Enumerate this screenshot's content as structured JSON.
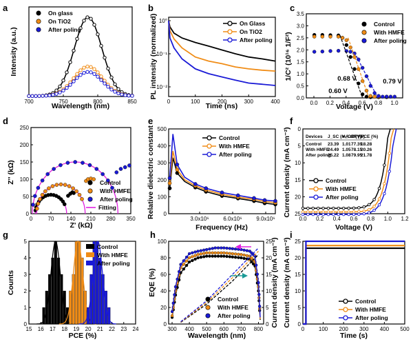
{
  "colors": {
    "control": "#000000",
    "hmfe": "#f08c16",
    "poling": "#1a1ad6",
    "fitting": "#e020e0",
    "teal": "#1a9a96"
  },
  "chart_data": [
    {
      "panel": "a",
      "type": "line",
      "xlabel": "Wavelength (nm)",
      "ylabel": "Intensity (a.u.)",
      "xlim": [
        700,
        850
      ],
      "xticks": [
        "700",
        "750",
        "800",
        "850"
      ],
      "series": [
        {
          "name": "On glass",
          "peak_x": 786,
          "peak_y": 0.88,
          "sigma": 20
        },
        {
          "name": "On TiO2",
          "peak_x": 786,
          "peak_y": 0.33,
          "sigma": 21
        },
        {
          "name": "After poling",
          "peak_x": 786,
          "peak_y": 0.27,
          "sigma": 21
        }
      ]
    },
    {
      "panel": "b",
      "type": "line",
      "xlabel": "Time (ns)",
      "ylabel": "PL intensity (normalized)",
      "xlim": [
        0,
        400
      ],
      "xticks": [
        "0",
        "100",
        "200",
        "300",
        "400"
      ],
      "yticks": [
        "10°",
        "10⁻¹",
        "10⁻²"
      ],
      "yscale": "log",
      "series": [
        {
          "name": "On Glass",
          "x": [
            0,
            5,
            20,
            50,
            100,
            150,
            200,
            250,
            300,
            350,
            400
          ],
          "y": [
            1.0,
            0.65,
            0.42,
            0.3,
            0.22,
            0.17,
            0.13,
            0.1,
            0.08,
            0.07,
            0.06
          ]
        },
        {
          "name": "On TiO2",
          "x": [
            0,
            5,
            20,
            50,
            100,
            150,
            200,
            250,
            300,
            350,
            400
          ],
          "y": [
            1.0,
            0.5,
            0.28,
            0.15,
            0.08,
            0.06,
            0.05,
            0.04,
            0.035,
            0.032,
            0.03
          ]
        },
        {
          "name": "After poling",
          "x": [
            0,
            5,
            20,
            50,
            100,
            150,
            200,
            250,
            300,
            350,
            400
          ],
          "y": [
            1.0,
            0.3,
            0.15,
            0.07,
            0.035,
            0.025,
            0.02,
            0.016,
            0.013,
            0.012,
            0.011
          ]
        }
      ]
    },
    {
      "panel": "c",
      "type": "scatter",
      "xlabel": "Voltage (V)",
      "ylabel": "1/C² (10¹⁶ 1/F²)",
      "xlim": [
        -0.1,
        1.1
      ],
      "ylim": [
        0,
        3.5
      ],
      "xticks": [
        "0.0",
        "0.2",
        "0.4",
        "0.6",
        "0.8",
        "1.0"
      ],
      "yticks": [
        "0.0",
        "0.5",
        "1.0",
        "1.5",
        "2.0",
        "2.5",
        "3.0",
        "3.5"
      ],
      "annotations": [
        "0.60 V",
        "0.68 V",
        "0.79 V"
      ],
      "series": [
        {
          "name": "Control",
          "x": [
            0.0,
            0.1,
            0.2,
            0.3,
            0.35,
            0.4,
            0.45,
            0.5,
            0.55,
            0.6,
            0.65,
            0.7,
            0.8,
            0.9
          ],
          "y": [
            2.62,
            2.62,
            2.61,
            2.6,
            2.5,
            2.2,
            1.7,
            1.2,
            0.6,
            0.15,
            0.05,
            0.03,
            0.03,
            0.03
          ]
        },
        {
          "name": "With HMFE",
          "x": [
            0.0,
            0.1,
            0.2,
            0.3,
            0.35,
            0.4,
            0.45,
            0.5,
            0.55,
            0.6,
            0.65,
            0.7,
            0.75,
            0.8,
            0.9
          ],
          "y": [
            2.55,
            2.55,
            2.55,
            2.55,
            2.5,
            2.4,
            2.1,
            1.7,
            1.2,
            0.7,
            0.3,
            0.08,
            0.05,
            0.05,
            0.05
          ]
        },
        {
          "name": "After poling",
          "x": [
            0.0,
            0.1,
            0.2,
            0.3,
            0.4,
            0.45,
            0.5,
            0.55,
            0.6,
            0.65,
            0.7,
            0.75,
            0.8,
            0.85,
            0.9,
            0.95,
            1.0
          ],
          "y": [
            1.92,
            1.93,
            1.95,
            1.96,
            1.95,
            1.92,
            1.85,
            1.6,
            1.25,
            0.9,
            0.5,
            0.2,
            0.08,
            0.05,
            0.05,
            0.05,
            0.05
          ]
        }
      ]
    },
    {
      "panel": "d",
      "type": "scatter",
      "xlabel": "Z' (kΩ)",
      "ylabel": "Z'' (kΩ)",
      "xlim": [
        0,
        350
      ],
      "ylim": [
        0,
        250
      ],
      "xticks": [
        "0",
        "70",
        "140",
        "210",
        "280",
        "350"
      ],
      "yticks": [
        "0",
        "50",
        "100",
        "150",
        "200",
        "250"
      ],
      "series": [
        {
          "name": "Control",
          "kind": "arc",
          "center": 70,
          "radius": 55,
          "tail": [
            [
              130,
              52
            ],
            [
              138,
              58
            ],
            [
              145,
              62
            ],
            [
              150,
              60
            ]
          ]
        },
        {
          "name": "With HMFE",
          "kind": "arc",
          "center": 105,
          "radius": 85,
          "tail": [
            [
              193,
              95
            ],
            [
              200,
              100
            ],
            [
              210,
              102
            ],
            [
              220,
              100
            ]
          ]
        },
        {
          "name": "After poling",
          "kind": "arc",
          "center": 155,
          "radius": 150,
          "tail": [
            [
              300,
              120
            ],
            [
              315,
              130
            ],
            [
              330,
              135
            ],
            [
              345,
              140
            ]
          ]
        },
        {
          "name": "Fitting",
          "kind": "line"
        }
      ]
    },
    {
      "panel": "e",
      "type": "line",
      "xlabel": "Frequency (Hz)",
      "ylabel": "Relative dielectric constant",
      "ylim": [
        0,
        500
      ],
      "xticks": [
        "3.0x10⁶",
        "6.0x10⁶",
        "9.0x10⁶"
      ],
      "yticks": [
        "0",
        "100",
        "200",
        "300",
        "400",
        "500"
      ],
      "series": [
        {
          "name": "Control",
          "x": [
            0.1,
            0.4,
            0.8,
            1.5,
            2.5,
            3.5,
            5,
            6.5,
            8,
            9,
            10
          ],
          "y": [
            150,
            330,
            240,
            190,
            155,
            130,
            105,
            90,
            75,
            62,
            55
          ]
        },
        {
          "name": "With HMFE",
          "x": [
            0.1,
            0.4,
            0.8,
            1.5,
            2.5,
            3.5,
            5,
            6.5,
            8,
            9,
            10
          ],
          "y": [
            180,
            370,
            260,
            200,
            165,
            140,
            115,
            98,
            85,
            72,
            65
          ]
        },
        {
          "name": "After poling",
          "x": [
            0.1,
            0.4,
            0.8,
            1.5,
            2.5,
            3.5,
            5,
            6.5,
            8,
            9,
            10
          ],
          "y": [
            210,
            470,
            290,
            215,
            175,
            150,
            125,
            108,
            92,
            80,
            75
          ]
        }
      ]
    },
    {
      "panel": "f",
      "type": "line",
      "xlabel": "Voltage (V)",
      "ylabel": "Current density (mA cm⁻²)",
      "xlim": [
        0,
        1.2
      ],
      "ylim": [
        0,
        25
      ],
      "xticks": [
        "0.0",
        "0.2",
        "0.4",
        "0.6",
        "0.8",
        "1.0",
        "1.2"
      ],
      "yticks": [
        "0",
        "5",
        "10",
        "15",
        "20",
        "25"
      ],
      "table": {
        "headers": [
          "Devices",
          "J_SC (mA cm⁻²)",
          "V_OC (V)",
          "FF (%)",
          "PCE (%)"
        ],
        "rows": [
          [
            "Control",
            "23.39",
            "1.01",
            "77.39",
            "18.28"
          ],
          [
            "With HMFE",
            "24.49",
            "1.05",
            "78.15",
            "20.26"
          ],
          [
            "After poling",
            "25.22",
            "1.08",
            "79.95",
            "21.78"
          ]
        ]
      },
      "series": [
        {
          "name": "Control",
          "jsc": 23.39,
          "voc": 1.01
        },
        {
          "name": "With HMFE",
          "jsc": 24.49,
          "voc": 1.05
        },
        {
          "name": "After poling",
          "jsc": 25.22,
          "voc": 1.08
        }
      ]
    },
    {
      "panel": "g",
      "type": "bar",
      "xlabel": "PCE (%)",
      "ylabel": "Counts",
      "xlim": [
        15,
        24
      ],
      "ylim": [
        0,
        5
      ],
      "xticks": [
        "15",
        "16",
        "17",
        "18",
        "19",
        "20",
        "21",
        "22",
        "23",
        "24"
      ],
      "yticks": [
        "0",
        "1",
        "2",
        "3",
        "4",
        "5"
      ],
      "series": [
        {
          "name": "Control",
          "x": [
            16.25,
            16.5,
            16.75,
            17.0,
            17.25,
            17.5,
            17.75,
            18.0,
            18.25
          ],
          "y": [
            1,
            2,
            3,
            4,
            5,
            4,
            3,
            2,
            1
          ]
        },
        {
          "name": "With HMFE",
          "x": [
            18.5,
            18.75,
            19.0,
            19.25,
            19.5,
            19.75
          ],
          "y": [
            2,
            3,
            5,
            5,
            4,
            2
          ]
        },
        {
          "name": "After poling",
          "x": [
            20.0,
            20.25,
            20.5,
            20.75,
            21.0,
            21.25,
            21.5,
            21.75
          ],
          "y": [
            1,
            3,
            5,
            5,
            4,
            3,
            2,
            1
          ]
        }
      ]
    },
    {
      "panel": "h",
      "type": "line",
      "xlabel": "Wavelength (nm)",
      "ylabel": "EQE (%)",
      "ylabel2": "Current density (mA cm⁻²)",
      "xlim": [
        280,
        830
      ],
      "ylim": [
        0,
        100
      ],
      "y2lim": [
        0,
        25
      ],
      "xticks": [
        "300",
        "400",
        "500",
        "600",
        "700",
        "800"
      ],
      "yticks": [
        "0",
        "20",
        "40",
        "60",
        "80",
        "100"
      ],
      "y2ticks": [
        "0",
        "5",
        "10",
        "15",
        "20",
        "25"
      ],
      "series": [
        {
          "name": "Control",
          "x": [
            300,
            320,
            350,
            400,
            450,
            500,
            550,
            600,
            650,
            700,
            750,
            780,
            800,
            810
          ],
          "y": [
            8,
            35,
            62,
            75,
            80,
            82,
            82,
            82,
            81,
            80,
            78,
            70,
            40,
            5
          ]
        },
        {
          "name": "With HMFE",
          "x": [
            300,
            320,
            350,
            400,
            450,
            500,
            550,
            600,
            650,
            700,
            750,
            780,
            800,
            810
          ],
          "y": [
            10,
            40,
            68,
            80,
            84,
            86,
            86,
            86,
            85,
            84,
            82,
            75,
            45,
            6
          ]
        },
        {
          "name": "After poling",
          "x": [
            300,
            320,
            350,
            400,
            450,
            500,
            550,
            600,
            650,
            700,
            750,
            780,
            800,
            810
          ],
          "y": [
            15,
            45,
            72,
            85,
            88,
            90,
            92,
            92,
            91,
            90,
            88,
            82,
            50,
            8
          ]
        }
      ],
      "integrated": [
        {
          "name": "Control",
          "x": [
            350,
            500,
            650,
            800
          ],
          "y": [
            0.5,
            6,
            13,
            21
          ]
        },
        {
          "name": "With HMFE",
          "x": [
            350,
            500,
            650,
            800
          ],
          "y": [
            0.6,
            6.5,
            14,
            22
          ]
        },
        {
          "name": "After poling",
          "x": [
            350,
            500,
            650,
            800
          ],
          "y": [
            0.7,
            7,
            15,
            23
          ]
        }
      ]
    },
    {
      "panel": "i",
      "type": "line",
      "xlabel": "Time (s)",
      "ylabel": "Current density (mA cm⁻²)",
      "xlim": [
        0,
        500
      ],
      "ylim": [
        0,
        25
      ],
      "xticks": [
        "0",
        "100",
        "200",
        "300",
        "400",
        "500"
      ],
      "yticks": [
        "0",
        "5",
        "10",
        "15",
        "20",
        "25"
      ],
      "series": [
        {
          "name": "Control",
          "steady": 22.9
        },
        {
          "name": "With HMFE",
          "steady": 23.7
        },
        {
          "name": "After poling",
          "steady": 25.0
        }
      ]
    }
  ]
}
